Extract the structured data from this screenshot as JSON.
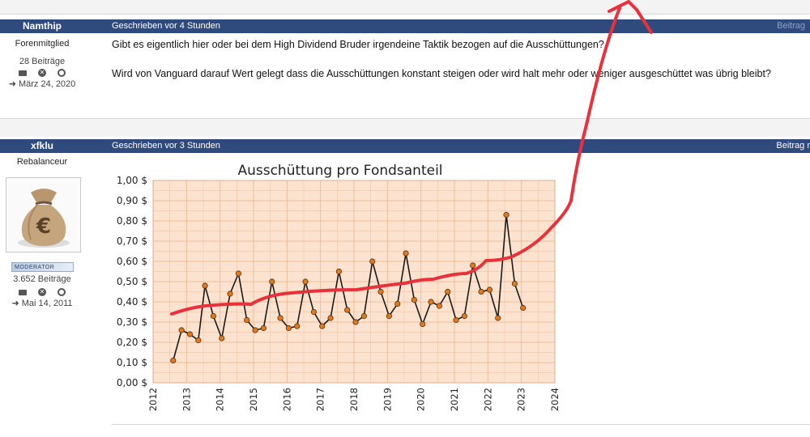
{
  "post1": {
    "username": "Namthip",
    "time": "Geschrieben vor 4 Stunden",
    "quote_label": "Beitrag",
    "rank": "Forenmitglied",
    "post_count": "28 Beiträge",
    "joined": "März 24, 2020",
    "text_line1": "Gibt es eigentlich hier oder bei dem High Dividend Bruder irgendeine Taktik bezogen auf die Ausschüttungen?",
    "text_line2": "Wird von Vanguard darauf Wert gelegt dass die Ausschüttungen konstant steigen oder wird halt mehr oder weniger ausgeschüttet was übrig bleibt?"
  },
  "post2": {
    "username": "xfklu",
    "time": "Geschrieben vor 3 Stunden",
    "quote_label": "Beitrag r",
    "rank": "Rebalanceur",
    "badge": "MODERATOR",
    "post_count": "3.652 Beiträge",
    "joined": "Mai 14, 2011"
  },
  "icons": [
    "envelope-icon",
    "block-icon",
    "search-icon",
    "sign-in-icon",
    "money-bag-icon"
  ],
  "colors": {
    "header_bar": "#2f4a7d",
    "plot_bg": "#fbe3d0",
    "plot_grid": "#f0b48a",
    "marker": "#e07820",
    "red_annotation": "#e8313a"
  },
  "chart_data": {
    "type": "line",
    "title": "Ausschüttung pro Fondsanteil",
    "xlim": [
      2012,
      2024
    ],
    "ylim": [
      0,
      1
    ],
    "x_ticks": [
      "2012",
      "2013",
      "2014",
      "2015",
      "2016",
      "2017",
      "2018",
      "2019",
      "2020",
      "2021",
      "2022",
      "2023",
      "2024"
    ],
    "y_ticks": [
      "0,00 $",
      "0,10 $",
      "0,20 $",
      "0,30 $",
      "0,40 $",
      "0,50 $",
      "0,60 $",
      "0,70 $",
      "0,80 $",
      "0,90 $",
      "1,00 $"
    ],
    "series": [
      {
        "x": [
          2012.6,
          2012.85,
          2013.1,
          2013.35,
          2013.55,
          2013.8,
          2014.05,
          2014.3,
          2014.55,
          2014.8,
          2015.05,
          2015.3,
          2015.55,
          2015.8,
          2016.05,
          2016.3,
          2016.55,
          2016.8,
          2017.05,
          2017.3,
          2017.55,
          2017.8,
          2018.05,
          2018.3,
          2018.55,
          2018.8,
          2019.05,
          2019.3,
          2019.55,
          2019.8,
          2020.05,
          2020.3,
          2020.55,
          2020.8,
          2021.05,
          2021.3,
          2021.55,
          2021.8,
          2022.05,
          2022.3,
          2022.55,
          2022.8,
          2023.05
        ],
        "y": [
          0.11,
          0.26,
          0.24,
          0.21,
          0.48,
          0.33,
          0.22,
          0.44,
          0.54,
          0.31,
          0.26,
          0.27,
          0.5,
          0.32,
          0.27,
          0.28,
          0.5,
          0.35,
          0.28,
          0.32,
          0.55,
          0.36,
          0.3,
          0.33,
          0.6,
          0.45,
          0.33,
          0.39,
          0.64,
          0.41,
          0.29,
          0.4,
          0.38,
          0.45,
          0.31,
          0.33,
          0.58,
          0.45,
          0.46,
          0.32,
          0.83,
          0.49,
          0.37
        ]
      }
    ]
  }
}
